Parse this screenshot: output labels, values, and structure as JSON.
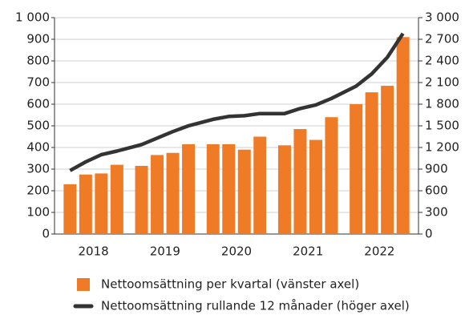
{
  "chart_data": {
    "type": "bar-line",
    "categories": [
      null,
      null,
      null,
      null,
      null,
      null,
      null,
      null,
      null,
      null,
      null,
      null,
      null,
      null,
      null,
      null,
      null,
      null,
      null,
      null
    ],
    "year_labels": [
      "2018",
      "2019",
      "2020",
      "2021",
      "2022"
    ],
    "series": [
      {
        "name": "Nettoomsättning per kvartal (vänster axel)",
        "color": "#f07b27",
        "kind": "bar",
        "values": [
          230,
          275,
          280,
          320,
          315,
          365,
          375,
          415,
          415,
          415,
          390,
          450,
          410,
          485,
          435,
          540,
          600,
          655,
          685,
          910
        ]
      },
      {
        "name": "Nettoomsättning rullande 12 månader (höger axel)",
        "color": "#333333",
        "kind": "line",
        "axis": "y2",
        "values": [
          880,
          1000,
          1100,
          1150,
          1240,
          1330,
          1420,
          1500,
          1590,
          1630,
          1640,
          1670,
          1670,
          1740,
          1790,
          1880,
          2050,
          2220,
          2450,
          2780
        ]
      }
    ],
    "ylim": [
      0,
      1000
    ],
    "yticks": [
      0,
      100,
      200,
      300,
      400,
      500,
      600,
      700,
      800,
      900,
      {
        "value": 1000,
        "label": "1 000"
      }
    ],
    "y2lim": [
      0,
      3000
    ],
    "y2ticks": [
      0,
      300,
      600,
      900,
      {
        "value": 1200,
        "label": "1 200"
      },
      {
        "value": 1500,
        "label": "1 500"
      },
      {
        "value": 1800,
        "label": "1 800"
      },
      {
        "value": 2100,
        "label": "2 100"
      },
      {
        "value": 2400,
        "label": "2 400"
      },
      {
        "value": 2700,
        "label": "2 700"
      },
      {
        "value": 3000,
        "label": "3 000"
      }
    ],
    "grid": true
  }
}
